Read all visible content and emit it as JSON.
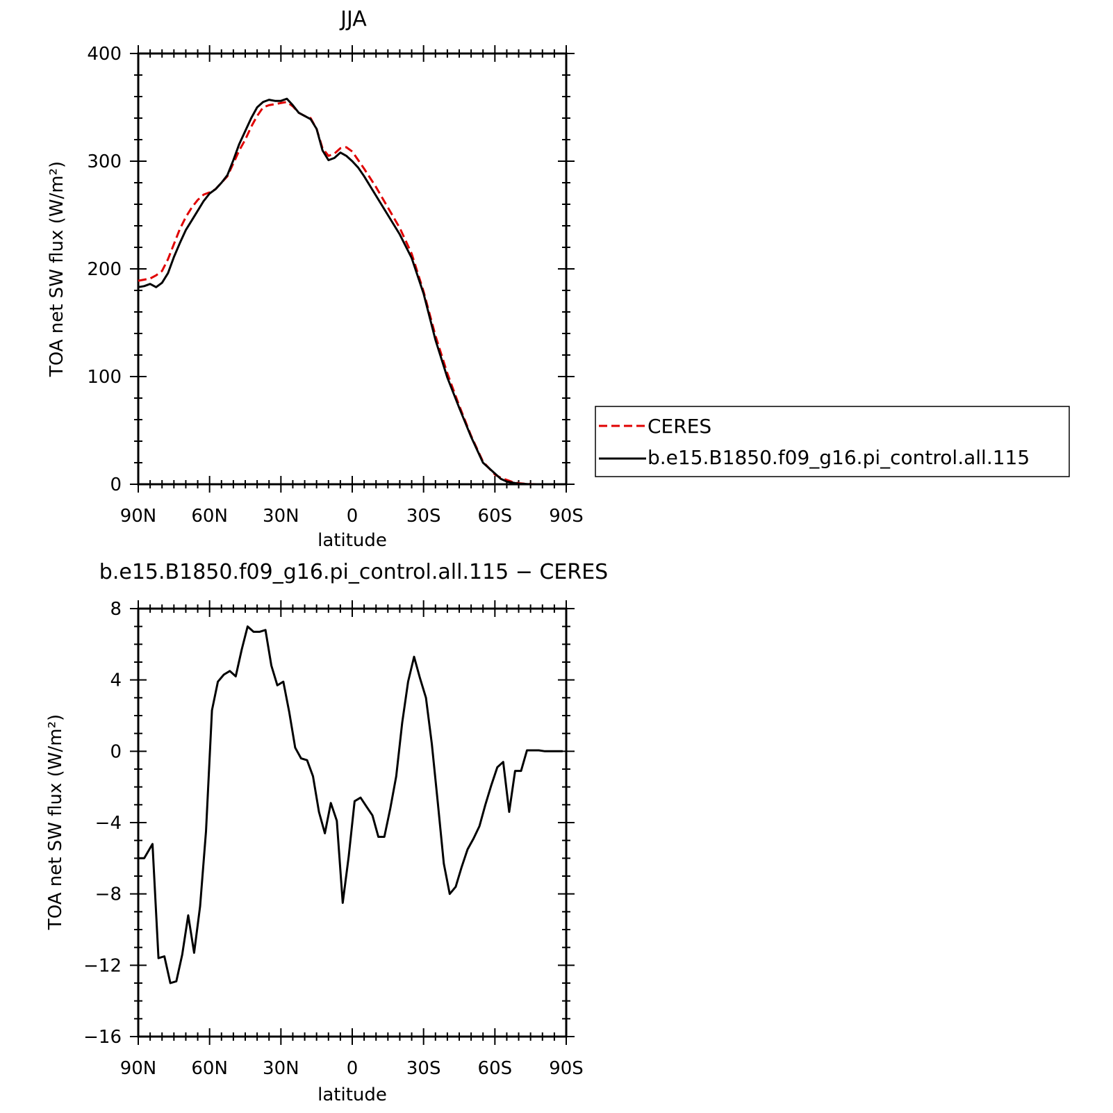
{
  "chart_data": [
    {
      "type": "line",
      "title": "JJA",
      "xlabel": "latitude",
      "ylabel": "TOA net SW flux (W/m²)",
      "xlim": [
        90,
        -90
      ],
      "ylim": [
        0,
        400
      ],
      "x_tick_values": [
        90,
        60,
        30,
        0,
        -30,
        -60,
        -90
      ],
      "x_tick_labels": [
        "90N",
        "60N",
        "30N",
        "0",
        "30S",
        "60S",
        "90S"
      ],
      "y_tick_values": [
        0,
        100,
        200,
        300,
        400
      ],
      "y_tick_labels": [
        "0",
        "100",
        "200",
        "300",
        "400"
      ],
      "grid": false,
      "legend_position": "right",
      "series": [
        {
          "name": "CERES",
          "color": "#e00000",
          "style": "dashed",
          "x": [
            90,
            87.5,
            85,
            82.5,
            80,
            77.5,
            75,
            72.5,
            70,
            67.5,
            65,
            62.5,
            60,
            57.5,
            55,
            52.5,
            50,
            47.5,
            45,
            42.5,
            40,
            37.5,
            35,
            32.5,
            30,
            27.5,
            25,
            22.5,
            20,
            17.5,
            15,
            12.5,
            10,
            7.5,
            5,
            2.5,
            0,
            -2.5,
            -5,
            -10,
            -15,
            -20,
            -25,
            -30,
            -35,
            -40,
            -45,
            -50,
            -55,
            -60,
            -62.5,
            -65,
            -67.5,
            -70,
            -72.5,
            -75,
            -77.5,
            -80,
            -85,
            -90
          ],
          "y": [
            189,
            190,
            191,
            194,
            198,
            209,
            223,
            237,
            248,
            257,
            264,
            269,
            271,
            274,
            280,
            286,
            298,
            310,
            320,
            332,
            342,
            350,
            352,
            353,
            354,
            355,
            351,
            345,
            342,
            340,
            330,
            312,
            305,
            307,
            312,
            313,
            309,
            301,
            293,
            276,
            257,
            238,
            214,
            179,
            138,
            103,
            73,
            45,
            21,
            9,
            6,
            4,
            2,
            1,
            0.5,
            0.2,
            0,
            0,
            0,
            0
          ]
        },
        {
          "name": "b.e15.B1850.f09_g16.pi_control.all.115",
          "color": "#000000",
          "style": "solid",
          "x": [
            90,
            87.5,
            85,
            82.5,
            80,
            77.5,
            75,
            72.5,
            70,
            67.5,
            65,
            62.5,
            60,
            57.5,
            55,
            52.5,
            50,
            47.5,
            45,
            42.5,
            40,
            37.5,
            35,
            32.5,
            30,
            27.5,
            25,
            22.5,
            20,
            17.5,
            15,
            12.5,
            10,
            7.5,
            5,
            2.5,
            0,
            -2.5,
            -5,
            -10,
            -15,
            -20,
            -25,
            -30,
            -35,
            -40,
            -45,
            -50,
            -55,
            -60,
            -62.5,
            -65,
            -67.5,
            -70,
            -72.5,
            -75,
            -77.5,
            -80,
            -85,
            -90
          ],
          "y": [
            183,
            184,
            186,
            183,
            187,
            196,
            211,
            224,
            236,
            245,
            254,
            263,
            270,
            274,
            280,
            287,
            301,
            316,
            328,
            340,
            350,
            355,
            357,
            356,
            356,
            358,
            352,
            345,
            342,
            339,
            330,
            310,
            301,
            303,
            308,
            305,
            300,
            294,
            286,
            268,
            250,
            232,
            210,
            177,
            134,
            99,
            71,
            44,
            20,
            10,
            5,
            2.5,
            1.5,
            0.5,
            0.3,
            0,
            0,
            0,
            0,
            0
          ]
        }
      ]
    },
    {
      "type": "line",
      "title": "b.e15.B1850.f09_g16.pi_control.all.115 − CERES",
      "xlabel": "latitude",
      "ylabel": "TOA net SW flux (W/m²)",
      "xlim": [
        90,
        -90
      ],
      "ylim": [
        -16,
        8
      ],
      "x_tick_values": [
        90,
        60,
        30,
        0,
        -30,
        -60,
        -90
      ],
      "x_tick_labels": [
        "90N",
        "60N",
        "30N",
        "0",
        "30S",
        "60S",
        "90S"
      ],
      "y_tick_values": [
        8,
        4,
        0,
        -4,
        -8,
        -12,
        -16
      ],
      "y_tick_labels": [
        "8",
        "4",
        "0",
        "−4",
        "−8",
        "−12",
        "−16"
      ],
      "grid": false,
      "series": [
        {
          "color": "#000000",
          "style": "solid",
          "x": [
            90,
            87.5,
            84,
            81.5,
            79,
            76.5,
            74,
            71.5,
            69,
            66.5,
            64,
            61.5,
            59,
            56.5,
            54,
            51.5,
            49,
            46.5,
            44,
            41.5,
            39,
            36.5,
            34,
            31.5,
            29,
            26.5,
            24,
            21.5,
            19,
            16.5,
            14,
            11.5,
            9,
            6.5,
            4,
            1.5,
            -1,
            -3.5,
            -6,
            -8.5,
            -11,
            -13.5,
            -16,
            -18.5,
            -21,
            -23.5,
            -26,
            -28.5,
            -31,
            -33.5,
            -36,
            -38.5,
            -41,
            -43.5,
            -46,
            -48.5,
            -51,
            -53.5,
            -56,
            -58.5,
            -61,
            -63.5,
            -66,
            -68.5,
            -71,
            -73.5,
            -76,
            -78.5,
            -81,
            -83.5,
            -86,
            -88.5
          ],
          "y": [
            -6.0,
            -6.0,
            -5.2,
            -11.6,
            -11.5,
            -13.0,
            -12.9,
            -11.4,
            -9.2,
            -11.3,
            -8.7,
            -4.5,
            2.3,
            3.9,
            4.3,
            4.5,
            4.2,
            5.7,
            7.0,
            6.7,
            6.7,
            6.8,
            4.8,
            3.7,
            3.9,
            2.2,
            0.2,
            -0.4,
            -0.5,
            -1.4,
            -3.4,
            -4.6,
            -2.9,
            -3.9,
            -8.5,
            -5.9,
            -2.8,
            -2.6,
            -3.1,
            -3.6,
            -4.8,
            -4.8,
            -3.2,
            -1.4,
            1.6,
            3.9,
            5.3,
            4.1,
            3.0,
            0.4,
            -2.9,
            -6.3,
            -8.0,
            -7.6,
            -6.5,
            -5.5,
            -4.9,
            -4.2,
            -3.0,
            -1.9,
            -0.9,
            -0.6,
            -3.4,
            -1.1,
            -1.1,
            0.05,
            0.05,
            0.05,
            0.0,
            0.0,
            0.0,
            0.0
          ]
        }
      ]
    }
  ]
}
